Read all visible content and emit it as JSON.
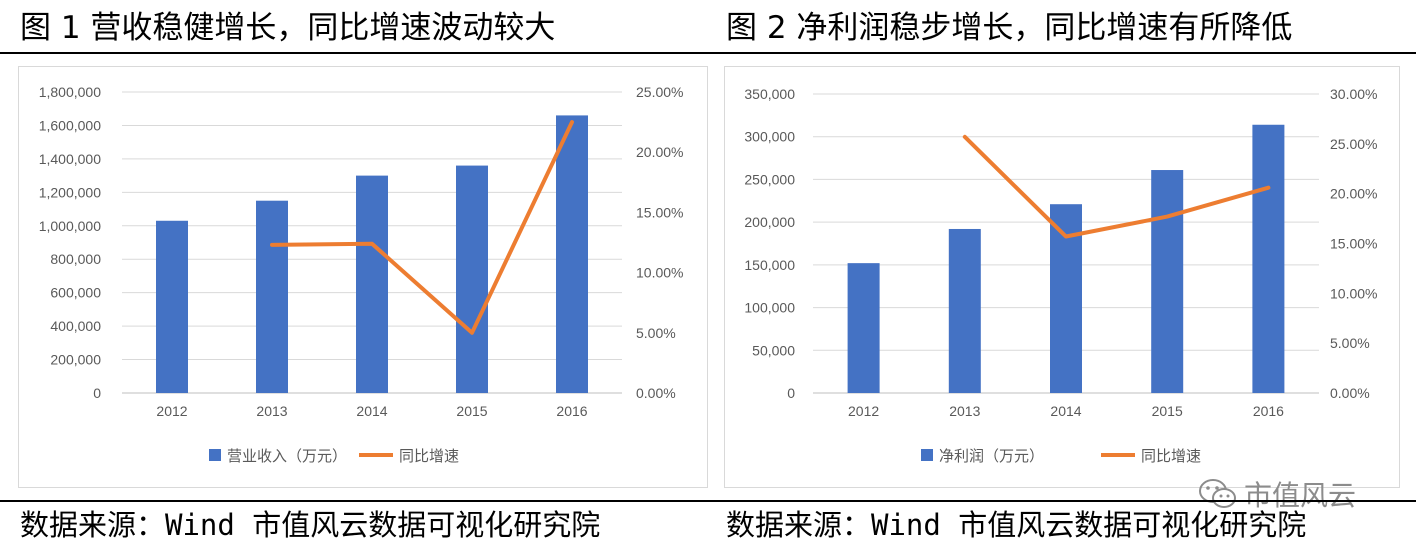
{
  "titles": {
    "left": "图 1 营收稳健增长，同比增速波动较大",
    "right": "图 2 净利润稳步增长，同比增速有所降低"
  },
  "sources": {
    "left": "数据来源：Wind  市值风云数据可视化研究院",
    "right": "数据来源：Wind  市值风云数据可视化研究院"
  },
  "watermark": {
    "text": "市值风云",
    "icon": "wechat-icon"
  },
  "colors": {
    "bar": "#4472C4",
    "line": "#ED7D31",
    "grid": "#d9d9d9",
    "axis_text": "#595959"
  },
  "chart_data": [
    {
      "type": "bar+line",
      "categories": [
        "2012",
        "2013",
        "2014",
        "2015",
        "2016"
      ],
      "series": [
        {
          "name": "营业收入（万元）",
          "type": "bar",
          "axis": "left",
          "values": [
            1030000,
            1150000,
            1300000,
            1360000,
            1660000
          ]
        },
        {
          "name": "同比增速",
          "type": "line",
          "axis": "right",
          "values": [
            null,
            12.3,
            12.4,
            5.0,
            22.5
          ]
        }
      ],
      "left_axis": {
        "min": 0,
        "max": 1800000,
        "ticks": [
          "0",
          "200,000",
          "400,000",
          "600,000",
          "800,000",
          "1,000,000",
          "1,200,000",
          "1,400,000",
          "1,600,000",
          "1,800,000"
        ]
      },
      "right_axis": {
        "min": 0,
        "max": 25,
        "ticks": [
          "0.00%",
          "5.00%",
          "10.00%",
          "15.00%",
          "20.00%",
          "25.00%"
        ]
      },
      "grid": true,
      "legend": "bottom"
    },
    {
      "type": "bar+line",
      "categories": [
        "2012",
        "2013",
        "2014",
        "2015",
        "2016"
      ],
      "series": [
        {
          "name": "净利润（万元）",
          "type": "bar",
          "axis": "left",
          "values": [
            152000,
            192000,
            221000,
            261000,
            314000
          ]
        },
        {
          "name": "同比增速",
          "type": "line",
          "axis": "right",
          "values": [
            null,
            25.7,
            15.7,
            17.7,
            20.6
          ]
        }
      ],
      "left_axis": {
        "min": 0,
        "max": 350000,
        "ticks": [
          "0",
          "50,000",
          "100,000",
          "150,000",
          "200,000",
          "250,000",
          "300,000",
          "350,000"
        ]
      },
      "right_axis": {
        "min": 0,
        "max": 30,
        "ticks": [
          "0.00%",
          "5.00%",
          "10.00%",
          "15.00%",
          "20.00%",
          "25.00%",
          "30.00%"
        ]
      },
      "grid": true,
      "legend": "bottom"
    }
  ]
}
